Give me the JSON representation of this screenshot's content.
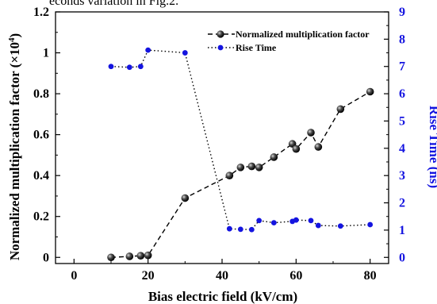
{
  "caption_fragment": "econds variation in Fig.2.",
  "colors": {
    "left_series": "#000000",
    "right_series": "#1414e0",
    "right_axis": "#1414e0",
    "axis": "#000000"
  },
  "chart_data": {
    "type": "line",
    "xlabel": "Bias electric field (kV/cm)",
    "ylabel": "Normalized multiplication factor (×10",
    "ylabel_exp": "4",
    "ylabel_close": ")",
    "y2label": "Rise Time (ns)",
    "xlim": [
      -5,
      85
    ],
    "ylim": [
      -0.03,
      1.2
    ],
    "y2lim": [
      -0.225,
      9
    ],
    "xticks": [
      0,
      20,
      40,
      60,
      80
    ],
    "yticks": [
      0,
      0.2,
      0.4,
      0.6,
      0.8,
      1,
      1.2
    ],
    "ytick_labels": [
      "0",
      "0.2",
      "0.4",
      "0.6",
      "0.8",
      "1",
      "1.2"
    ],
    "y2ticks": [
      0,
      1,
      2,
      3,
      4,
      5,
      6,
      7,
      8,
      9
    ],
    "legend": "top-right",
    "series": [
      {
        "name": "Normalized multiplication factor",
        "axis": "left",
        "style": "dashed",
        "marker": "sphere",
        "x": [
          10,
          15,
          18,
          20,
          30,
          42,
          45,
          48,
          50,
          54,
          59,
          60,
          64,
          66,
          72,
          80
        ],
        "y": [
          0.0,
          0.005,
          0.008,
          0.01,
          0.29,
          0.4,
          0.44,
          0.445,
          0.44,
          0.49,
          0.555,
          0.53,
          0.61,
          0.54,
          0.725,
          0.81
        ]
      },
      {
        "name": "Rise Time",
        "axis": "right",
        "style": "dotted",
        "marker": "dot",
        "x": [
          10,
          15,
          18,
          20,
          30,
          42,
          45,
          48,
          50,
          54,
          59,
          60,
          64,
          66,
          72,
          80
        ],
        "y": [
          7.0,
          6.97,
          7.0,
          7.6,
          7.5,
          1.05,
          1.03,
          1.02,
          1.35,
          1.27,
          1.32,
          1.37,
          1.35,
          1.17,
          1.15,
          1.2
        ]
      }
    ]
  }
}
